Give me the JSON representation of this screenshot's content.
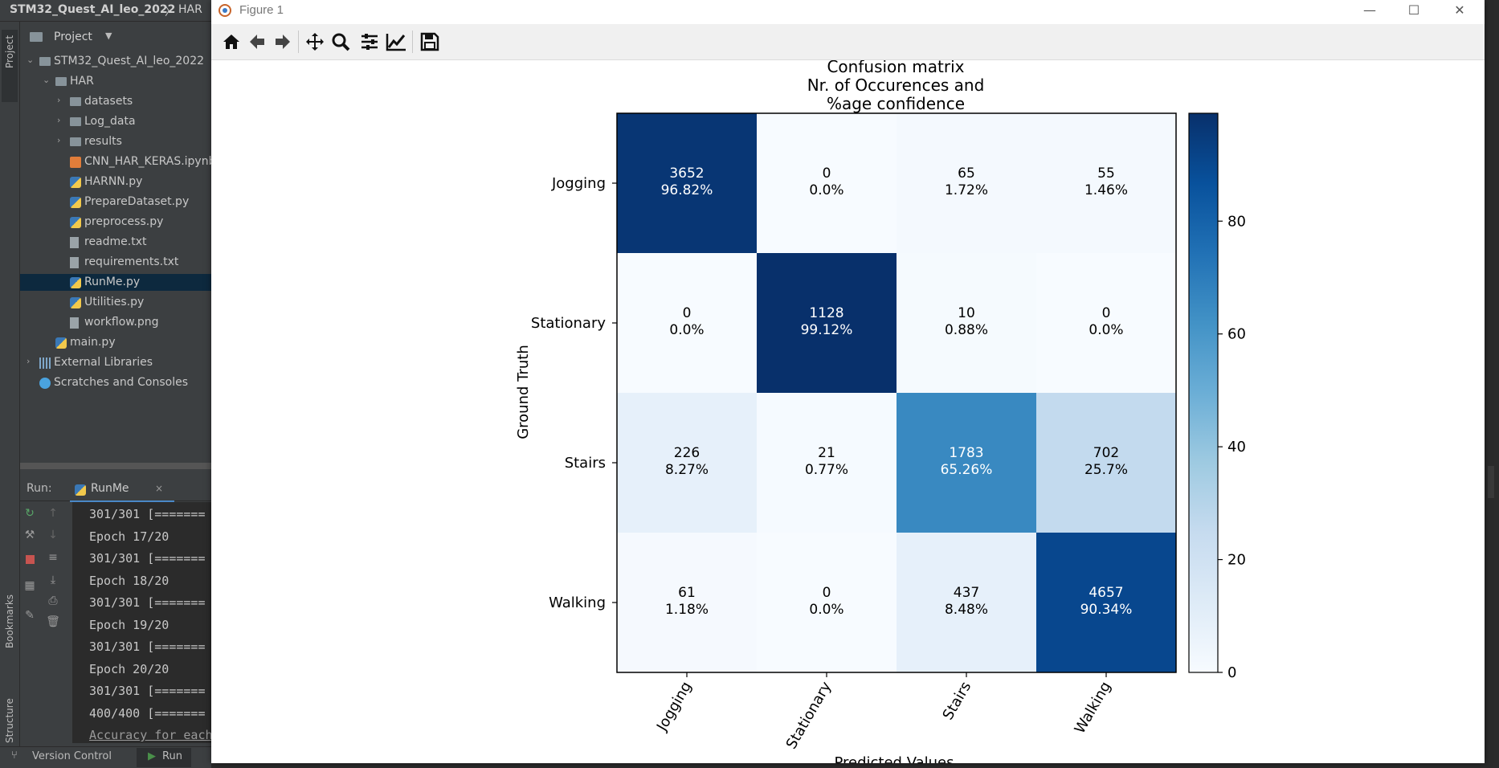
{
  "ide": {
    "breadcrumb_root": "STM32_Quest_AI_leo_2022",
    "breadcrumb_sep": "〉",
    "breadcrumb_child": "HAR",
    "vtab_project": "Project",
    "vtab_bookmarks": "Bookmarks",
    "vtab_structure": "Structure",
    "project_header": "Project",
    "tree": [
      {
        "label": "STM32_Quest_AI_leo_2022",
        "type": "folder",
        "arrow": "⌄"
      },
      {
        "label": "HAR",
        "type": "folder",
        "arrow": "⌄"
      },
      {
        "label": "datasets",
        "type": "folder",
        "arrow": "›"
      },
      {
        "label": "Log_data",
        "type": "folder",
        "arrow": "›"
      },
      {
        "label": "results",
        "type": "folder",
        "arrow": "›"
      },
      {
        "label": "CNN_HAR_KERAS.ipynb",
        "type": "ipy",
        "arrow": ""
      },
      {
        "label": "HARNN.py",
        "type": "py",
        "arrow": ""
      },
      {
        "label": "PrepareDataset.py",
        "type": "py",
        "arrow": ""
      },
      {
        "label": "preprocess.py",
        "type": "py",
        "arrow": ""
      },
      {
        "label": "readme.txt",
        "type": "file",
        "arrow": ""
      },
      {
        "label": "requirements.txt",
        "type": "file",
        "arrow": ""
      },
      {
        "label": "RunMe.py",
        "type": "py",
        "arrow": ""
      },
      {
        "label": "Utilities.py",
        "type": "py",
        "arrow": ""
      },
      {
        "label": "workflow.png",
        "type": "file",
        "arrow": ""
      },
      {
        "label": "main.py",
        "type": "py",
        "arrow": ""
      },
      {
        "label": "External Libraries",
        "type": "lib",
        "arrow": "›"
      },
      {
        "label": "Scratches and Consoles",
        "type": "scratch",
        "arrow": ""
      }
    ],
    "run_label": "Run:",
    "run_tab": "RunMe",
    "run_tab_close": "×",
    "console_lines": [
      "301/301 [=======",
      "Epoch 17/20",
      "301/301 [=======",
      "Epoch 18/20",
      "301/301 [=======",
      "Epoch 19/20",
      "301/301 [=======",
      "Epoch 20/20",
      "301/301 [=======",
      "400/400 [=======",
      "Accuracy for each"
    ],
    "status_version_control": "Version Control",
    "status_run": "Run"
  },
  "figure": {
    "window_title": "Figure 1",
    "window_buttons": {
      "minimize": "—",
      "maximize": "☐",
      "close": "✕"
    },
    "toolbar": [
      "home-icon",
      "back-icon",
      "forward-icon",
      "pan-icon",
      "zoom-icon",
      "subplots-icon",
      "edit-axis-icon",
      "save-icon"
    ]
  },
  "chart_data": {
    "type": "heatmap",
    "title_lines": [
      "Confusion matrix",
      "Nr. of Occurences and",
      "%age confidence"
    ],
    "xlabel": "Predicted Values",
    "ylabel": "Ground Truth",
    "x_categories": [
      "Jogging",
      "Stationary",
      "Stairs",
      "Walking"
    ],
    "y_categories": [
      "Jogging",
      "Stationary",
      "Stairs",
      "Walking"
    ],
    "counts": [
      [
        3652,
        0,
        65,
        55
      ],
      [
        0,
        1128,
        10,
        0
      ],
      [
        226,
        21,
        1783,
        702
      ],
      [
        61,
        0,
        437,
        4657
      ]
    ],
    "percentages": [
      [
        "96.82%",
        "0.0%",
        "1.72%",
        "1.46%"
      ],
      [
        "0.0%",
        "99.12%",
        "0.88%",
        "0.0%"
      ],
      [
        "8.27%",
        "0.77%",
        "65.26%",
        "25.7%"
      ],
      [
        "1.18%",
        "0.0%",
        "8.48%",
        "90.34%"
      ]
    ],
    "colormap": "Blues",
    "colorbar": {
      "min": 0,
      "max": 99.12,
      "ticks": [
        0,
        20,
        40,
        60,
        80
      ]
    },
    "grid": false
  }
}
